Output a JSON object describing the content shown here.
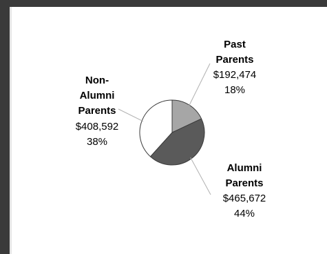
{
  "chart_data": {
    "type": "pie",
    "title": "",
    "slices": [
      {
        "name_lines": [
          "Past",
          "Parents"
        ],
        "amount": "$192,474",
        "percent_label": "18%",
        "value": 192474,
        "color": "#a6a6a6"
      },
      {
        "name_lines": [
          "Alumni",
          "Parents"
        ],
        "amount": "$465,672",
        "percent_label": "44%",
        "value": 465672,
        "color": "#5a5a5a"
      },
      {
        "name_lines": [
          "Non-",
          "Alumni",
          "Parents"
        ],
        "amount": "$408,592",
        "percent_label": "38%",
        "value": 408592,
        "color": "#ffffff"
      }
    ],
    "start_angle_deg": 0,
    "direction": "clockwise",
    "legend": "none",
    "data_labels": "outside with leader lines"
  }
}
